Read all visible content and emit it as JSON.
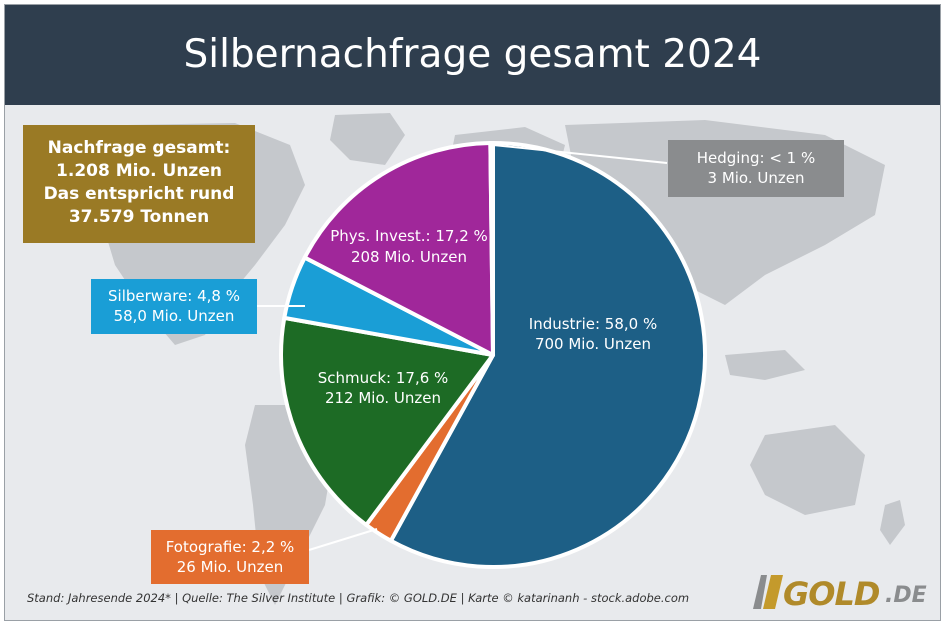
{
  "title": "Silbernachfrage gesamt 2024",
  "summary": {
    "lines": [
      "Nachfrage gesamt:",
      "1.208 Mio. Unzen",
      "Das entspricht rund",
      "37.579 Tonnen"
    ]
  },
  "chart_data": {
    "type": "pie",
    "title": "Silbernachfrage gesamt 2024",
    "slices": [
      {
        "name": "Industrie",
        "percent_label": "58,0 %",
        "value": 700,
        "share": 58.0,
        "amount_label": "700 Mio. Unzen",
        "color": "#1d5f86"
      },
      {
        "name": "Fotografie",
        "percent_label": "2,2 %",
        "value": 26,
        "share": 2.2,
        "amount_label": "26 Mio. Unzen",
        "color": "#e36d2f"
      },
      {
        "name": "Schmuck",
        "percent_label": "17,6 %",
        "value": 212,
        "share": 17.6,
        "amount_label": "212 Mio. Unzen",
        "color": "#1d6b25"
      },
      {
        "name": "Silberware",
        "percent_label": "4,8 %",
        "value": 58.0,
        "share": 4.8,
        "amount_label": "58,0 Mio. Unzen",
        "color": "#1a9ed6"
      },
      {
        "name": "Phys. Invest.",
        "percent_label": "17,2 %",
        "value": 208,
        "share": 17.2,
        "amount_label": "208 Mio. Unzen",
        "color": "#a0279a"
      },
      {
        "name": "Hedging",
        "percent_label": "< 1 %",
        "value": 3,
        "share": 0.2,
        "amount_label": "3 Mio. Unzen",
        "color": "#8a8c8e"
      }
    ],
    "unit": "Mio. Unzen"
  },
  "labels": {
    "industrie": {
      "line1": "Industrie: 58,0 %",
      "line2": "700 Mio. Unzen"
    },
    "schmuck": {
      "line1": "Schmuck: 17,6 %",
      "line2": "212 Mio. Unzen"
    },
    "invest": {
      "line1": "Phys. Invest.: 17,2 %",
      "line2": "208 Mio. Unzen"
    },
    "silber": {
      "line1": "Silberware: 4,8 %",
      "line2": "58,0 Mio. Unzen"
    },
    "foto": {
      "line1": "Fotografie: 2,2 %",
      "line2": "26 Mio. Unzen"
    },
    "hedging": {
      "line1": "Hedging: < 1 %",
      "line2": "3 Mio. Unzen"
    }
  },
  "footer": "Stand: Jahresende 2024* | Quelle: The Silver Institute | Grafik: © GOLD.DE | Karte © katarinanh - stock.adobe.com",
  "logo": {
    "name": "GOLD",
    "tld": ".DE"
  },
  "colors": {
    "header": "#2f3e4e",
    "map": "#c5c8cc",
    "background": "#e8eaed",
    "leader_line": "#ffffff"
  }
}
